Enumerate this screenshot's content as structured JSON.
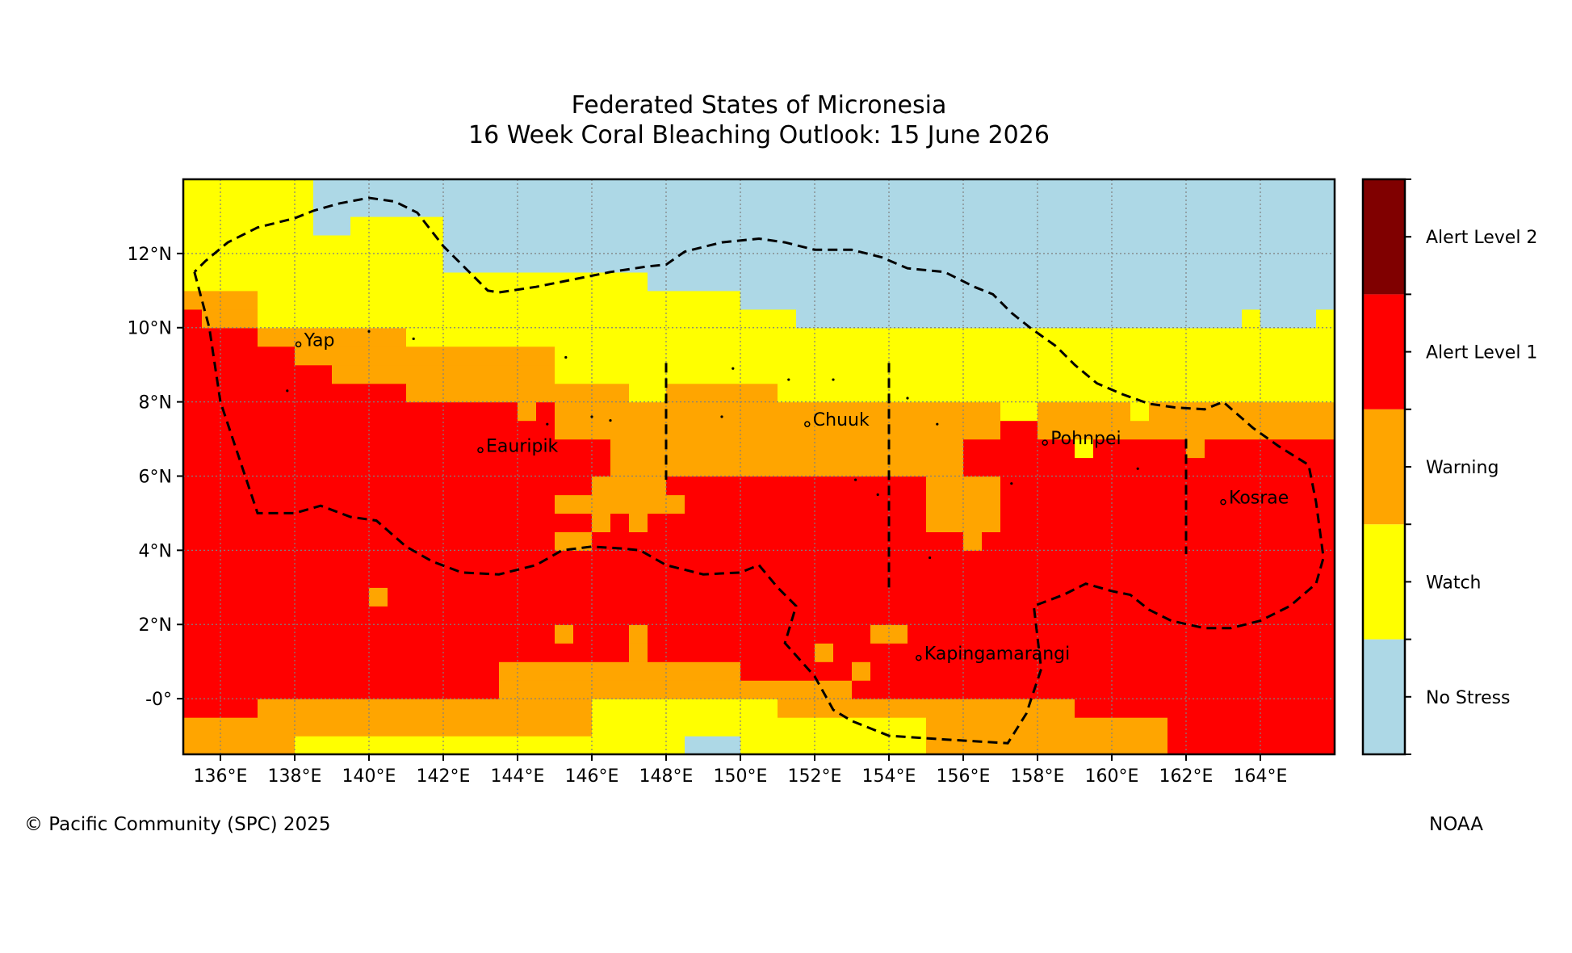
{
  "title_line1": "Federated States of Micronesia",
  "title_line2": "16 Week Coral Bleaching Outlook: 15 June 2026",
  "copyright": "© Pacific Community (SPC) 2025",
  "source": "NOAA",
  "colors": {
    "no_stress": "#add8e6",
    "watch": "#ffff00",
    "warning": "#ffa500",
    "alert1": "#ff0000",
    "alert2": "#800000"
  },
  "chart_data": {
    "type": "heatmap",
    "lon_range": [
      135,
      166
    ],
    "lat_range": [
      -1.5,
      14
    ],
    "x_tick_labels": [
      "136°E",
      "138°E",
      "140°E",
      "142°E",
      "144°E",
      "146°E",
      "148°E",
      "150°E",
      "152°E",
      "154°E",
      "156°E",
      "158°E",
      "160°E",
      "162°E",
      "164°E"
    ],
    "y_tick_labels": [
      "12°N",
      "10°N",
      "8°N",
      "6°N",
      "4°N",
      "2°N",
      "-0°"
    ],
    "legend": [
      "No Stress",
      "Watch",
      "Warning",
      "Alert Level 1",
      "Alert Level 2"
    ],
    "places": [
      {
        "name": "Yap",
        "lon": 138.1,
        "lat": 9.55
      },
      {
        "name": "Eauripik",
        "lon": 143.0,
        "lat": 6.7
      },
      {
        "name": "Chuuk",
        "lon": 151.8,
        "lat": 7.4
      },
      {
        "name": "Pohnpei",
        "lon": 158.2,
        "lat": 6.9
      },
      {
        "name": "Kosrae",
        "lon": 163.0,
        "lat": 5.3
      },
      {
        "name": "Kapingamarangi",
        "lon": 154.8,
        "lat": 1.1
      }
    ],
    "eez_boundary": [
      [
        135.3,
        11.5
      ],
      [
        135.7,
        10
      ],
      [
        136,
        8
      ],
      [
        136.5,
        6.5
      ],
      [
        137,
        5
      ],
      [
        138,
        5
      ],
      [
        138.7,
        5.2
      ],
      [
        139.5,
        4.9
      ],
      [
        140.2,
        4.8
      ],
      [
        141,
        4.1
      ],
      [
        141.7,
        3.7
      ],
      [
        142.5,
        3.4
      ],
      [
        143.5,
        3.35
      ],
      [
        144.5,
        3.6
      ],
      [
        145.2,
        4.0
      ],
      [
        146,
        4.1
      ],
      [
        146.8,
        4.05
      ],
      [
        147.3,
        4.0
      ],
      [
        148,
        3.6
      ],
      [
        149,
        3.35
      ],
      [
        150,
        3.4
      ],
      [
        150.5,
        3.6
      ],
      [
        151,
        3.0
      ],
      [
        151.5,
        2.5
      ],
      [
        151.2,
        1.5
      ],
      [
        152,
        0.6
      ],
      [
        152.5,
        -0.3
      ],
      [
        153,
        -0.6
      ],
      [
        154,
        -1.0
      ],
      [
        155.5,
        -1.1
      ],
      [
        157.2,
        -1.2
      ],
      [
        157.7,
        -0.4
      ],
      [
        158.1,
        0.8
      ],
      [
        157.9,
        2.5
      ],
      [
        158.7,
        2.8
      ],
      [
        159.3,
        3.1
      ],
      [
        160,
        2.9
      ],
      [
        160.5,
        2.8
      ],
      [
        161,
        2.4
      ],
      [
        161.6,
        2.1
      ],
      [
        162.5,
        1.9
      ],
      [
        163.2,
        1.9
      ],
      [
        164,
        2.1
      ],
      [
        164.8,
        2.5
      ],
      [
        165.5,
        3.1
      ],
      [
        165.7,
        3.8
      ],
      [
        165.5,
        5.3
      ],
      [
        165.3,
        6.3
      ],
      [
        164.5,
        6.8
      ],
      [
        163.8,
        7.3
      ],
      [
        163,
        8.0
      ],
      [
        162.5,
        7.8
      ],
      [
        161.7,
        7.85
      ],
      [
        161,
        7.95
      ],
      [
        160.3,
        8.2
      ],
      [
        159.6,
        8.5
      ],
      [
        159,
        9.0
      ],
      [
        158.5,
        9.5
      ],
      [
        157.8,
        10.0
      ],
      [
        157.3,
        10.4
      ],
      [
        156.8,
        10.9
      ],
      [
        156.3,
        11.1
      ],
      [
        155.5,
        11.5
      ],
      [
        154.5,
        11.6
      ],
      [
        153.8,
        11.9
      ],
      [
        153,
        12.1
      ],
      [
        152,
        12.1
      ],
      [
        151.2,
        12.3
      ],
      [
        150.5,
        12.4
      ],
      [
        149.5,
        12.3
      ],
      [
        148.5,
        12.05
      ],
      [
        148,
        11.7
      ],
      [
        147.5,
        11.65
      ],
      [
        146.5,
        11.5
      ],
      [
        145.5,
        11.3
      ],
      [
        144.5,
        11.1
      ],
      [
        143.5,
        10.95
      ],
      [
        143.2,
        11.0
      ],
      [
        142.7,
        11.5
      ],
      [
        142,
        12.2
      ],
      [
        141.3,
        13.1
      ],
      [
        140.7,
        13.4
      ],
      [
        140,
        13.5
      ],
      [
        139.2,
        13.35
      ],
      [
        138.5,
        13.15
      ],
      [
        138,
        12.95
      ],
      [
        137,
        12.7
      ],
      [
        136.2,
        12.3
      ],
      [
        135.6,
        11.8
      ],
      [
        135.3,
        11.5
      ]
    ],
    "state_boundaries": [
      [
        [
          148,
          9.05
        ],
        [
          148,
          5.9
        ]
      ],
      [
        [
          154,
          9.05
        ],
        [
          154,
          2.9
        ]
      ],
      [
        [
          162,
          7.0
        ],
        [
          162,
          3.9
        ]
      ]
    ]
  }
}
